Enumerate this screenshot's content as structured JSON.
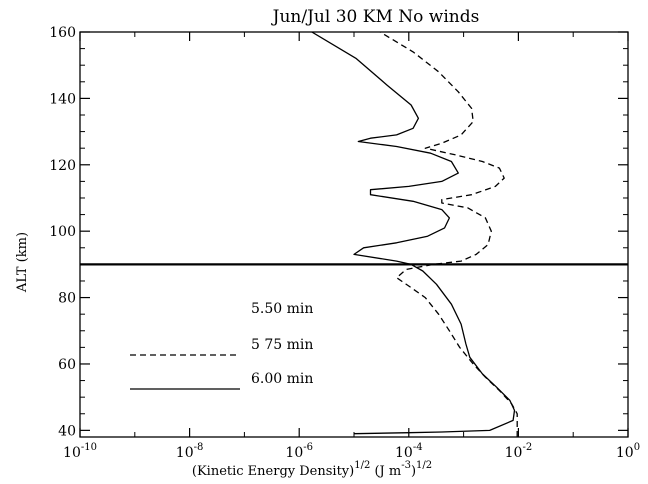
{
  "chart_data": {
    "type": "line",
    "title": "Jun/Jul 30 KM   No winds",
    "ylabel": "ALT (km)",
    "xlabel_main": "(Kinetic Energy Density)",
    "xlabel_exp": "1/2",
    "xlabel_units": "(J m",
    "xlabel_units_exp": "-3",
    "xlabel_units_close": ")",
    "xlabel_units_exp2": "1/2",
    "xscale": "log",
    "xlim": [
      1e-10,
      1
    ],
    "ylim": [
      38,
      160
    ],
    "x_ticks": [
      {
        "exp": -10,
        "base": "10",
        "sup": "-10"
      },
      {
        "exp": -8,
        "base": "10",
        "sup": "-8"
      },
      {
        "exp": -6,
        "base": "10",
        "sup": "-6"
      },
      {
        "exp": -4,
        "base": "10",
        "sup": "-4"
      },
      {
        "exp": -2,
        "base": "10",
        "sup": "-2"
      },
      {
        "exp": 0,
        "base": "10",
        "sup": "0"
      }
    ],
    "y_ticks": [
      {
        "value": 40,
        "label": "40"
      },
      {
        "value": 60,
        "label": "60"
      },
      {
        "value": 80,
        "label": "80"
      },
      {
        "value": 100,
        "label": "100"
      },
      {
        "value": 120,
        "label": "120"
      },
      {
        "value": 140,
        "label": "140"
      },
      {
        "value": 160,
        "label": "160"
      }
    ],
    "reference_line_alt": 90,
    "series": [
      {
        "name": "5.50 min",
        "style": "none",
        "points": []
      },
      {
        "name": "5 75 min",
        "style": "dashed",
        "points": [
          [
            0.0095,
            38
          ],
          [
            0.0095,
            42
          ],
          [
            0.0095,
            45
          ],
          [
            0.0075,
            48
          ],
          [
            0.0045,
            52
          ],
          [
            0.0025,
            56
          ],
          [
            0.0015,
            60
          ],
          [
            0.00085,
            65
          ],
          [
            0.00055,
            70
          ],
          [
            0.00035,
            75
          ],
          [
            0.0002,
            80
          ],
          [
            0.00011,
            83
          ],
          [
            6e-05,
            86
          ],
          [
            9e-05,
            88.5
          ],
          [
            0.00028,
            90
          ],
          [
            0.0009,
            91
          ],
          [
            0.0017,
            93
          ],
          [
            0.0028,
            96
          ],
          [
            0.0032,
            100
          ],
          [
            0.0025,
            104
          ],
          [
            0.0012,
            107
          ],
          [
            0.0004,
            108.5
          ],
          [
            0.0004,
            109.5
          ],
          [
            0.0014,
            111
          ],
          [
            0.0038,
            113.5
          ],
          [
            0.0055,
            116
          ],
          [
            0.0045,
            119
          ],
          [
            0.0022,
            121
          ],
          [
            0.0007,
            123
          ],
          [
            0.0002,
            125
          ],
          [
            0.0004,
            126.5
          ],
          [
            0.0009,
            129
          ],
          [
            0.0015,
            133
          ],
          [
            0.0014,
            137
          ],
          [
            0.0008,
            142
          ],
          [
            0.00035,
            148
          ],
          [
            0.00012,
            154
          ],
          [
            3e-05,
            160
          ]
        ]
      },
      {
        "name": "6.00 min",
        "style": "solid",
        "points": [
          [
            1e-05,
            39
          ],
          [
            0.0001,
            39.3
          ],
          [
            0.0004,
            39.5
          ],
          [
            0.003,
            40
          ],
          [
            0.008,
            43
          ],
          [
            0.0085,
            46
          ],
          [
            0.007,
            49
          ],
          [
            0.004,
            53
          ],
          [
            0.0022,
            57
          ],
          [
            0.0013,
            62
          ],
          [
            0.0011,
            66
          ],
          [
            0.0009,
            72
          ],
          [
            0.0006,
            78
          ],
          [
            0.00032,
            84
          ],
          [
            0.00018,
            88
          ],
          [
            0.00011,
            90
          ],
          [
            6e-05,
            91
          ],
          [
            1e-05,
            93
          ],
          [
            1.5e-05,
            95
          ],
          [
            6e-05,
            96.5
          ],
          [
            0.00022,
            98.5
          ],
          [
            0.00045,
            101
          ],
          [
            0.00055,
            104
          ],
          [
            0.0004,
            106.5
          ],
          [
            0.00012,
            109
          ],
          [
            2e-05,
            111
          ],
          [
            2e-05,
            112.5
          ],
          [
            0.0001,
            113.5
          ],
          [
            0.0004,
            115
          ],
          [
            0.0008,
            117.5
          ],
          [
            0.0006,
            121
          ],
          [
            0.00025,
            123.5
          ],
          [
            6e-05,
            125.5
          ],
          [
            1.2e-05,
            127
          ],
          [
            2e-05,
            128
          ],
          [
            6e-05,
            129
          ],
          [
            0.00012,
            131
          ],
          [
            0.00015,
            134
          ],
          [
            0.00011,
            138
          ],
          [
            4e-05,
            144
          ],
          [
            1.1e-05,
            152
          ],
          [
            1.7e-06,
            160
          ]
        ]
      }
    ],
    "legend": [
      {
        "label": "5.50 min",
        "style": "none"
      },
      {
        "label": "5 75 min",
        "style": "dashed"
      },
      {
        "label": "6.00 min",
        "style": "solid"
      }
    ],
    "legend_placement": "lower-center"
  }
}
